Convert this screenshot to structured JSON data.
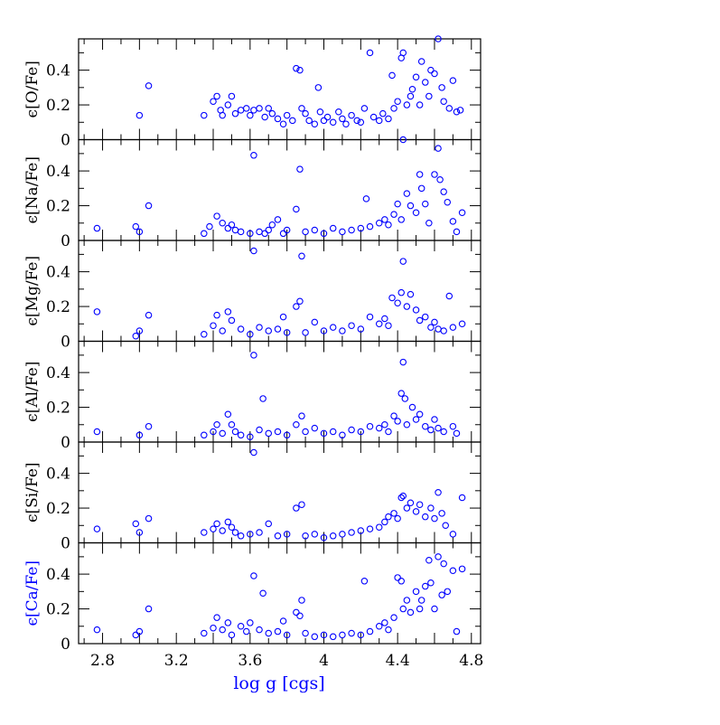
{
  "colors": {
    "marker": "#0000ff",
    "axis": "#000000",
    "blue_label": "#0000ff"
  },
  "chart_data": {
    "type": "scatter",
    "xlabel": "log g   [cgs]",
    "x_tick_labels": [
      "2.8",
      "3.2",
      "3.6",
      "4",
      "4.4",
      "4.8"
    ],
    "y_tick_labels": [
      "0",
      "0.2",
      "0.4"
    ],
    "xlim": [
      2.67,
      4.85
    ],
    "ylim": [
      0,
      0.58
    ],
    "marker": "open-circle",
    "panels": [
      {
        "ylabel": "ϵ[O/Fe]",
        "points": [
          [
            3.0,
            0.14
          ],
          [
            3.05,
            0.31
          ],
          [
            3.35,
            0.14
          ],
          [
            3.4,
            0.22
          ],
          [
            3.42,
            0.25
          ],
          [
            3.44,
            0.17
          ],
          [
            3.45,
            0.14
          ],
          [
            3.48,
            0.2
          ],
          [
            3.5,
            0.25
          ],
          [
            3.52,
            0.15
          ],
          [
            3.55,
            0.17
          ],
          [
            3.58,
            0.18
          ],
          [
            3.6,
            0.14
          ],
          [
            3.62,
            0.17
          ],
          [
            3.65,
            0.18
          ],
          [
            3.68,
            0.13
          ],
          [
            3.7,
            0.18
          ],
          [
            3.72,
            0.15
          ],
          [
            3.75,
            0.12
          ],
          [
            3.78,
            0.09
          ],
          [
            3.8,
            0.14
          ],
          [
            3.83,
            0.11
          ],
          [
            3.85,
            0.41
          ],
          [
            3.87,
            0.4
          ],
          [
            3.88,
            0.18
          ],
          [
            3.9,
            0.15
          ],
          [
            3.92,
            0.11
          ],
          [
            3.95,
            0.09
          ],
          [
            3.97,
            0.3
          ],
          [
            3.98,
            0.16
          ],
          [
            4.0,
            0.11
          ],
          [
            4.02,
            0.13
          ],
          [
            4.05,
            0.1
          ],
          [
            4.08,
            0.16
          ],
          [
            4.1,
            0.12
          ],
          [
            4.12,
            0.09
          ],
          [
            4.15,
            0.14
          ],
          [
            4.18,
            0.11
          ],
          [
            4.2,
            0.1
          ],
          [
            4.22,
            0.18
          ],
          [
            4.25,
            0.5
          ],
          [
            4.27,
            0.13
          ],
          [
            4.3,
            0.11
          ],
          [
            4.32,
            0.15
          ],
          [
            4.35,
            0.12
          ],
          [
            4.37,
            0.37
          ],
          [
            4.38,
            0.18
          ],
          [
            4.4,
            0.22
          ],
          [
            4.42,
            0.47
          ],
          [
            4.43,
            0.5
          ],
          [
            4.45,
            0.2
          ],
          [
            4.47,
            0.25
          ],
          [
            4.48,
            0.29
          ],
          [
            4.5,
            0.36
          ],
          [
            4.52,
            0.2
          ],
          [
            4.53,
            0.45
          ],
          [
            4.55,
            0.33
          ],
          [
            4.57,
            0.25
          ],
          [
            4.58,
            0.4
          ],
          [
            4.6,
            0.38
          ],
          [
            4.62,
            0.58
          ],
          [
            4.64,
            0.3
          ],
          [
            4.65,
            0.22
          ],
          [
            4.68,
            0.18
          ],
          [
            4.7,
            0.34
          ],
          [
            4.72,
            0.16
          ],
          [
            4.74,
            0.17
          ]
        ]
      },
      {
        "ylabel": "ϵ[Na/Fe]",
        "points": [
          [
            2.77,
            0.07
          ],
          [
            2.98,
            0.08
          ],
          [
            3.0,
            0.05
          ],
          [
            3.05,
            0.2
          ],
          [
            3.35,
            0.04
          ],
          [
            3.38,
            0.08
          ],
          [
            3.42,
            0.14
          ],
          [
            3.45,
            0.1
          ],
          [
            3.48,
            0.07
          ],
          [
            3.5,
            0.09
          ],
          [
            3.52,
            0.06
          ],
          [
            3.55,
            0.05
          ],
          [
            3.6,
            0.04
          ],
          [
            3.62,
            0.49
          ],
          [
            3.65,
            0.05
          ],
          [
            3.68,
            0.04
          ],
          [
            3.7,
            0.06
          ],
          [
            3.72,
            0.09
          ],
          [
            3.75,
            0.12
          ],
          [
            3.78,
            0.04
          ],
          [
            3.8,
            0.06
          ],
          [
            3.85,
            0.18
          ],
          [
            3.87,
            0.41
          ],
          [
            3.9,
            0.05
          ],
          [
            3.95,
            0.06
          ],
          [
            4.0,
            0.04
          ],
          [
            4.05,
            0.07
          ],
          [
            4.1,
            0.05
          ],
          [
            4.15,
            0.06
          ],
          [
            4.2,
            0.07
          ],
          [
            4.23,
            0.24
          ],
          [
            4.25,
            0.08
          ],
          [
            4.3,
            0.1
          ],
          [
            4.33,
            0.12
          ],
          [
            4.35,
            0.09
          ],
          [
            4.38,
            0.15
          ],
          [
            4.4,
            0.21
          ],
          [
            4.42,
            0.12
          ],
          [
            4.43,
            0.58
          ],
          [
            4.45,
            0.27
          ],
          [
            4.47,
            0.2
          ],
          [
            4.5,
            0.16
          ],
          [
            4.52,
            0.38
          ],
          [
            4.53,
            0.3
          ],
          [
            4.55,
            0.21
          ],
          [
            4.57,
            0.1
          ],
          [
            4.6,
            0.38
          ],
          [
            4.62,
            0.53
          ],
          [
            4.63,
            0.35
          ],
          [
            4.65,
            0.28
          ],
          [
            4.67,
            0.22
          ],
          [
            4.7,
            0.11
          ],
          [
            4.72,
            0.05
          ],
          [
            4.75,
            0.16
          ]
        ]
      },
      {
        "ylabel": "ϵ[Mg/Fe]",
        "points": [
          [
            2.77,
            0.17
          ],
          [
            2.98,
            0.03
          ],
          [
            3.0,
            0.06
          ],
          [
            3.05,
            0.15
          ],
          [
            3.35,
            0.04
          ],
          [
            3.4,
            0.09
          ],
          [
            3.42,
            0.15
          ],
          [
            3.45,
            0.06
          ],
          [
            3.48,
            0.17
          ],
          [
            3.5,
            0.12
          ],
          [
            3.55,
            0.07
          ],
          [
            3.6,
            0.04
          ],
          [
            3.62,
            0.52
          ],
          [
            3.65,
            0.08
          ],
          [
            3.7,
            0.06
          ],
          [
            3.75,
            0.07
          ],
          [
            3.78,
            0.14
          ],
          [
            3.8,
            0.05
          ],
          [
            3.85,
            0.2
          ],
          [
            3.87,
            0.23
          ],
          [
            3.88,
            0.49
          ],
          [
            3.9,
            0.05
          ],
          [
            3.95,
            0.11
          ],
          [
            4.0,
            0.06
          ],
          [
            4.05,
            0.08
          ],
          [
            4.1,
            0.06
          ],
          [
            4.15,
            0.09
          ],
          [
            4.2,
            0.07
          ],
          [
            4.25,
            0.14
          ],
          [
            4.3,
            0.1
          ],
          [
            4.33,
            0.13
          ],
          [
            4.35,
            0.09
          ],
          [
            4.37,
            0.25
          ],
          [
            4.4,
            0.22
          ],
          [
            4.42,
            0.28
          ],
          [
            4.43,
            0.46
          ],
          [
            4.45,
            0.2
          ],
          [
            4.47,
            0.27
          ],
          [
            4.5,
            0.18
          ],
          [
            4.52,
            0.12
          ],
          [
            4.55,
            0.14
          ],
          [
            4.58,
            0.08
          ],
          [
            4.6,
            0.11
          ],
          [
            4.62,
            0.07
          ],
          [
            4.65,
            0.06
          ],
          [
            4.68,
            0.26
          ],
          [
            4.7,
            0.08
          ],
          [
            4.75,
            0.1
          ]
        ]
      },
      {
        "ylabel": "ϵ[Al/Fe]",
        "points": [
          [
            2.77,
            0.06
          ],
          [
            3.0,
            0.04
          ],
          [
            3.05,
            0.09
          ],
          [
            3.35,
            0.04
          ],
          [
            3.4,
            0.06
          ],
          [
            3.42,
            0.1
          ],
          [
            3.45,
            0.05
          ],
          [
            3.48,
            0.16
          ],
          [
            3.5,
            0.1
          ],
          [
            3.52,
            0.06
          ],
          [
            3.55,
            0.04
          ],
          [
            3.6,
            0.03
          ],
          [
            3.62,
            0.5
          ],
          [
            3.65,
            0.07
          ],
          [
            3.67,
            0.25
          ],
          [
            3.7,
            0.05
          ],
          [
            3.75,
            0.06
          ],
          [
            3.8,
            0.04
          ],
          [
            3.85,
            0.1
          ],
          [
            3.88,
            0.15
          ],
          [
            3.9,
            0.06
          ],
          [
            3.95,
            0.08
          ],
          [
            4.0,
            0.05
          ],
          [
            4.05,
            0.06
          ],
          [
            4.1,
            0.04
          ],
          [
            4.15,
            0.07
          ],
          [
            4.2,
            0.06
          ],
          [
            4.25,
            0.09
          ],
          [
            4.3,
            0.08
          ],
          [
            4.33,
            0.1
          ],
          [
            4.35,
            0.06
          ],
          [
            4.38,
            0.15
          ],
          [
            4.4,
            0.12
          ],
          [
            4.42,
            0.28
          ],
          [
            4.43,
            0.46
          ],
          [
            4.44,
            0.25
          ],
          [
            4.45,
            0.1
          ],
          [
            4.48,
            0.2
          ],
          [
            4.5,
            0.13
          ],
          [
            4.52,
            0.16
          ],
          [
            4.55,
            0.09
          ],
          [
            4.58,
            0.07
          ],
          [
            4.6,
            0.13
          ],
          [
            4.62,
            0.08
          ],
          [
            4.65,
            0.06
          ],
          [
            4.7,
            0.09
          ],
          [
            4.72,
            0.05
          ]
        ]
      },
      {
        "ylabel": "ϵ[Si/Fe]",
        "points": [
          [
            2.77,
            0.08
          ],
          [
            2.98,
            0.11
          ],
          [
            3.0,
            0.06
          ],
          [
            3.05,
            0.14
          ],
          [
            3.35,
            0.06
          ],
          [
            3.4,
            0.08
          ],
          [
            3.42,
            0.11
          ],
          [
            3.45,
            0.07
          ],
          [
            3.48,
            0.12
          ],
          [
            3.5,
            0.09
          ],
          [
            3.52,
            0.06
          ],
          [
            3.55,
            0.04
          ],
          [
            3.6,
            0.05
          ],
          [
            3.62,
            0.52
          ],
          [
            3.65,
            0.06
          ],
          [
            3.7,
            0.11
          ],
          [
            3.75,
            0.04
          ],
          [
            3.8,
            0.05
          ],
          [
            3.85,
            0.2
          ],
          [
            3.88,
            0.22
          ],
          [
            3.9,
            0.04
          ],
          [
            3.95,
            0.05
          ],
          [
            4.0,
            0.03
          ],
          [
            4.05,
            0.04
          ],
          [
            4.1,
            0.05
          ],
          [
            4.15,
            0.06
          ],
          [
            4.2,
            0.07
          ],
          [
            4.25,
            0.08
          ],
          [
            4.3,
            0.09
          ],
          [
            4.33,
            0.12
          ],
          [
            4.35,
            0.15
          ],
          [
            4.38,
            0.17
          ],
          [
            4.4,
            0.14
          ],
          [
            4.42,
            0.26
          ],
          [
            4.43,
            0.27
          ],
          [
            4.45,
            0.2
          ],
          [
            4.47,
            0.23
          ],
          [
            4.5,
            0.18
          ],
          [
            4.52,
            0.22
          ],
          [
            4.55,
            0.15
          ],
          [
            4.58,
            0.2
          ],
          [
            4.6,
            0.14
          ],
          [
            4.62,
            0.29
          ],
          [
            4.64,
            0.17
          ],
          [
            4.66,
            0.1
          ],
          [
            4.7,
            0.05
          ],
          [
            4.75,
            0.26
          ]
        ]
      },
      {
        "ylabel": "ϵ[Ca/Fe]",
        "points": [
          [
            2.77,
            0.08
          ],
          [
            2.98,
            0.05
          ],
          [
            3.0,
            0.07
          ],
          [
            3.05,
            0.2
          ],
          [
            3.35,
            0.06
          ],
          [
            3.4,
            0.09
          ],
          [
            3.42,
            0.15
          ],
          [
            3.45,
            0.08
          ],
          [
            3.48,
            0.12
          ],
          [
            3.5,
            0.05
          ],
          [
            3.55,
            0.1
          ],
          [
            3.58,
            0.07
          ],
          [
            3.6,
            0.12
          ],
          [
            3.62,
            0.39
          ],
          [
            3.65,
            0.08
          ],
          [
            3.67,
            0.29
          ],
          [
            3.7,
            0.06
          ],
          [
            3.75,
            0.07
          ],
          [
            3.78,
            0.13
          ],
          [
            3.8,
            0.05
          ],
          [
            3.85,
            0.18
          ],
          [
            3.87,
            0.16
          ],
          [
            3.88,
            0.25
          ],
          [
            3.9,
            0.06
          ],
          [
            3.95,
            0.04
          ],
          [
            4.0,
            0.05
          ],
          [
            4.05,
            0.04
          ],
          [
            4.1,
            0.05
          ],
          [
            4.15,
            0.06
          ],
          [
            4.2,
            0.05
          ],
          [
            4.22,
            0.36
          ],
          [
            4.25,
            0.07
          ],
          [
            4.3,
            0.1
          ],
          [
            4.33,
            0.12
          ],
          [
            4.35,
            0.08
          ],
          [
            4.38,
            0.15
          ],
          [
            4.4,
            0.38
          ],
          [
            4.42,
            0.36
          ],
          [
            4.43,
            0.2
          ],
          [
            4.45,
            0.25
          ],
          [
            4.47,
            0.18
          ],
          [
            4.5,
            0.3
          ],
          [
            4.52,
            0.2
          ],
          [
            4.53,
            0.25
          ],
          [
            4.55,
            0.33
          ],
          [
            4.57,
            0.48
          ],
          [
            4.58,
            0.35
          ],
          [
            4.6,
            0.2
          ],
          [
            4.62,
            0.5
          ],
          [
            4.64,
            0.28
          ],
          [
            4.65,
            0.46
          ],
          [
            4.67,
            0.3
          ],
          [
            4.7,
            0.42
          ],
          [
            4.72,
            0.07
          ],
          [
            4.75,
            0.43
          ]
        ]
      }
    ]
  }
}
